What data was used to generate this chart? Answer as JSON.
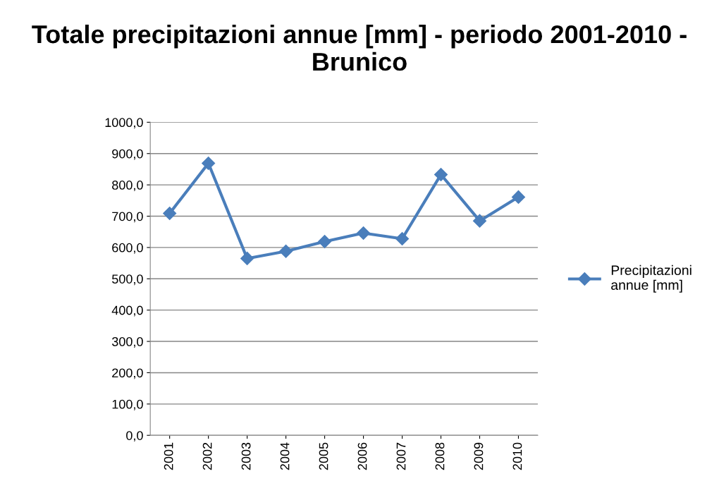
{
  "chart_data": {
    "type": "line",
    "title": "Totale precipitazioni annue [mm] - periodo 2001-2010 - Brunico",
    "categories": [
      "2001",
      "2002",
      "2003",
      "2004",
      "2005",
      "2006",
      "2007",
      "2008",
      "2009",
      "2010"
    ],
    "series": [
      {
        "name": "Precipitazioni annue [mm]",
        "color": "#4a7ebb",
        "values": [
          709,
          869,
          565,
          588,
          619,
          646,
          628,
          833,
          685,
          761
        ]
      }
    ],
    "ylim": [
      0,
      1000
    ],
    "yticks": [
      {
        "value": 0,
        "label": "0,0"
      },
      {
        "value": 100,
        "label": "100,0"
      },
      {
        "value": 200,
        "label": "200,0"
      },
      {
        "value": 300,
        "label": "300,0"
      },
      {
        "value": 400,
        "label": "400,0"
      },
      {
        "value": 500,
        "label": "500,0"
      },
      {
        "value": 600,
        "label": "600,0"
      },
      {
        "value": 700,
        "label": "700,0"
      },
      {
        "value": 800,
        "label": "800,0"
      },
      {
        "value": 900,
        "label": "900,0"
      },
      {
        "value": 1000,
        "label": "1000,0"
      }
    ],
    "grid": "y",
    "legend": "right",
    "marker": "diamond",
    "line_style": "solid"
  }
}
